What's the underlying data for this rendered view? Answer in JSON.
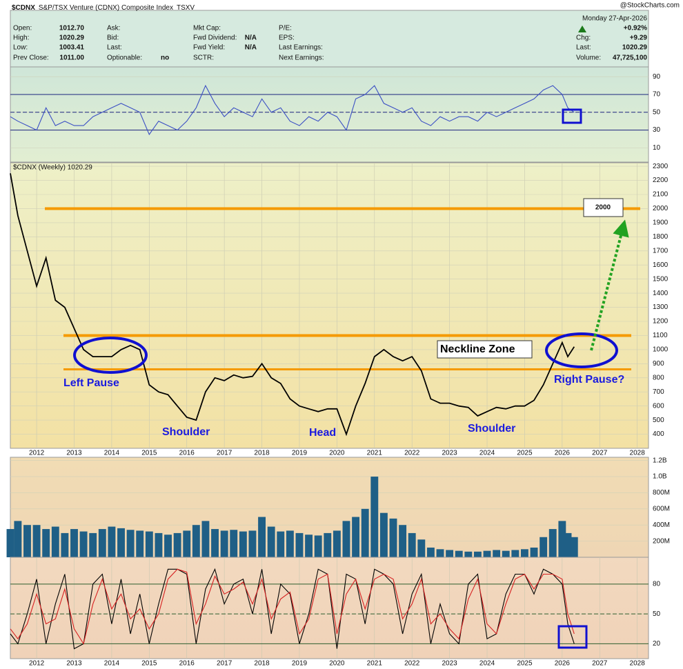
{
  "quote": {
    "symbol": "$CDNX",
    "name": "S&P/TSX Venture (CDNX) Composite Index",
    "exchange": "TSXV",
    "source": "@StockCharts.com",
    "date": "Monday  27-Apr-2026",
    "change_pct": "+0.92%",
    "columns": [
      [
        {
          "label": "Open:",
          "value": "1012.70"
        },
        {
          "label": "High:",
          "value": "1020.29"
        },
        {
          "label": "Low:",
          "value": "1003.41"
        },
        {
          "label": "Prev Close:",
          "value": "1011.00"
        }
      ],
      [
        {
          "label": "Ask:"
        },
        {
          "label": "Bid:"
        },
        {
          "label": "Last:"
        },
        {
          "label": "Optionable:",
          "value": "no"
        }
      ],
      [
        {
          "label": "Mkt Cap:"
        },
        {
          "label": "Fwd Dividend:",
          "value": "N/A"
        },
        {
          "label": "Fwd Yield:",
          "value": "N/A"
        },
        {
          "label": "SCTR:"
        }
      ],
      [
        {
          "label": "P/E:"
        },
        {
          "label": "EPS:"
        },
        {
          "label": "Last Earnings:"
        },
        {
          "label": "Next Earnings:"
        }
      ],
      [
        {
          "label": "Chg:",
          "value": "+9.29"
        },
        {
          "label": "Last:",
          "value": "1020.29"
        },
        {
          "label": "Volume:",
          "value": "47,725,100"
        }
      ]
    ]
  },
  "chart_data": [
    {
      "type": "line",
      "xlim": [
        2011.3,
        2028.3
      ],
      "ylim": [
        -6,
        101
      ],
      "yticks": [
        10,
        30,
        50,
        70,
        90
      ],
      "reference_lines": [
        70,
        50,
        30
      ],
      "reference_color": "#1a237e",
      "x": [
        2011.3,
        2011.5,
        2011.75,
        2012,
        2012.25,
        2012.5,
        2012.75,
        2013,
        2013.25,
        2013.5,
        2013.75,
        2014,
        2014.25,
        2014.5,
        2014.75,
        2015,
        2015.25,
        2015.5,
        2015.75,
        2016,
        2016.25,
        2016.5,
        2016.75,
        2017,
        2017.25,
        2017.5,
        2017.75,
        2018,
        2018.25,
        2018.5,
        2018.75,
        2019,
        2019.25,
        2019.5,
        2019.75,
        2020,
        2020.25,
        2020.5,
        2020.75,
        2021,
        2021.25,
        2021.5,
        2021.75,
        2022,
        2022.25,
        2022.5,
        2022.75,
        2023,
        2023.25,
        2023.5,
        2023.75,
        2024,
        2024.25,
        2024.5,
        2024.75,
        2025,
        2025.25,
        2025.5,
        2025.75,
        2026,
        2026.15,
        2026.32
      ],
      "series": [
        {
          "color": "#3b4fc4",
          "values": [
            45,
            40,
            35,
            30,
            55,
            35,
            40,
            35,
            35,
            45,
            50,
            55,
            60,
            55,
            50,
            25,
            40,
            35,
            30,
            40,
            55,
            80,
            60,
            45,
            55,
            50,
            45,
            65,
            50,
            55,
            40,
            35,
            45,
            40,
            50,
            45,
            30,
            65,
            70,
            80,
            60,
            55,
            50,
            55,
            40,
            35,
            45,
            40,
            45,
            45,
            40,
            50,
            45,
            50,
            55,
            60,
            65,
            75,
            80,
            70,
            55,
            50
          ]
        }
      ]
    },
    {
      "type": "line",
      "legend": "$CDNX (Weekly) 1020.29",
      "xlim": [
        2011.3,
        2028.3
      ],
      "ylim": [
        300,
        2325
      ],
      "yticks": [
        400,
        500,
        600,
        700,
        800,
        900,
        1000,
        1100,
        1200,
        1300,
        1400,
        1500,
        1600,
        1700,
        1800,
        1900,
        2000,
        2100,
        2200,
        2300
      ],
      "xticks": [
        2012,
        2013,
        2014,
        2015,
        2016,
        2017,
        2018,
        2019,
        2020,
        2021,
        2022,
        2023,
        2024,
        2025,
        2026,
        2027,
        2028
      ],
      "levels": [
        2000,
        1100,
        860
      ],
      "level_color": "#f59a00",
      "annotations": [
        "Left Pause",
        "Shoulder",
        "Head",
        "Shoulder",
        "Right Pause?",
        "Neckline Zone"
      ],
      "x": [
        2011.3,
        2011.5,
        2011.75,
        2012,
        2012.25,
        2012.5,
        2012.75,
        2013,
        2013.25,
        2013.5,
        2013.75,
        2014,
        2014.25,
        2014.5,
        2014.75,
        2015,
        2015.25,
        2015.5,
        2015.75,
        2016,
        2016.25,
        2016.5,
        2016.75,
        2017,
        2017.25,
        2017.5,
        2017.75,
        2018,
        2018.25,
        2018.5,
        2018.75,
        2019,
        2019.25,
        2019.5,
        2019.75,
        2020,
        2020.25,
        2020.5,
        2020.75,
        2021,
        2021.25,
        2021.5,
        2021.75,
        2022,
        2022.25,
        2022.5,
        2022.75,
        2023,
        2023.25,
        2023.5,
        2023.75,
        2024,
        2024.25,
        2024.5,
        2024.75,
        2025,
        2025.25,
        2025.5,
        2025.75,
        2026,
        2026.15,
        2026.32
      ],
      "series": [
        {
          "color": "#000000",
          "values": [
            2250,
            1950,
            1700,
            1450,
            1650,
            1350,
            1300,
            1150,
            1000,
            950,
            950,
            950,
            1000,
            1030,
            1000,
            750,
            700,
            680,
            600,
            520,
            500,
            700,
            800,
            780,
            820,
            800,
            810,
            900,
            800,
            760,
            650,
            600,
            580,
            560,
            580,
            580,
            400,
            600,
            760,
            950,
            1000,
            950,
            920,
            950,
            850,
            650,
            620,
            620,
            600,
            590,
            530,
            560,
            590,
            580,
            600,
            600,
            640,
            750,
            900,
            1050,
            950,
            1020
          ]
        }
      ]
    },
    {
      "type": "bar",
      "xlim": [
        2011.3,
        2028.3
      ],
      "ylim": [
        0,
        1240000000
      ],
      "color": "#1f5f86",
      "yticks": [
        {
          "value": 200000000,
          "label": "200M"
        },
        {
          "value": 400000000,
          "label": "400M"
        },
        {
          "value": 600000000,
          "label": "600M"
        },
        {
          "value": 800000000,
          "label": "800M"
        },
        {
          "value": 1000000000,
          "label": "1.0B"
        },
        {
          "value": 1200000000,
          "label": "1.2B"
        }
      ],
      "x": [
        2011.3,
        2011.5,
        2011.75,
        2012,
        2012.25,
        2012.5,
        2012.75,
        2013,
        2013.25,
        2013.5,
        2013.75,
        2014,
        2014.25,
        2014.5,
        2014.75,
        2015,
        2015.25,
        2015.5,
        2015.75,
        2016,
        2016.25,
        2016.5,
        2016.75,
        2017,
        2017.25,
        2017.5,
        2017.75,
        2018,
        2018.25,
        2018.5,
        2018.75,
        2019,
        2019.25,
        2019.5,
        2019.75,
        2020,
        2020.25,
        2020.5,
        2020.75,
        2021,
        2021.25,
        2021.5,
        2021.75,
        2022,
        2022.25,
        2022.5,
        2022.75,
        2023,
        2023.25,
        2023.5,
        2023.75,
        2024,
        2024.25,
        2024.5,
        2024.75,
        2025,
        2025.25,
        2025.5,
        2025.75,
        2026,
        2026.15,
        2026.32
      ],
      "values": [
        350000000,
        450000000,
        400000000,
        400000000,
        350000000,
        380000000,
        300000000,
        350000000,
        320000000,
        300000000,
        350000000,
        380000000,
        360000000,
        340000000,
        330000000,
        320000000,
        300000000,
        280000000,
        300000000,
        330000000,
        400000000,
        450000000,
        350000000,
        330000000,
        340000000,
        320000000,
        330000000,
        500000000,
        380000000,
        320000000,
        330000000,
        300000000,
        280000000,
        270000000,
        300000000,
        330000000,
        450000000,
        500000000,
        600000000,
        1000000000,
        550000000,
        480000000,
        400000000,
        300000000,
        220000000,
        120000000,
        100000000,
        90000000,
        80000000,
        70000000,
        70000000,
        80000000,
        90000000,
        80000000,
        90000000,
        100000000,
        120000000,
        250000000,
        350000000,
        450000000,
        300000000,
        250000000
      ]
    },
    {
      "type": "line",
      "xlim": [
        2011.3,
        2028.3
      ],
      "ylim": [
        5,
        107
      ],
      "yticks": [
        20,
        50,
        80
      ],
      "reference_lines": [
        80,
        50,
        20
      ],
      "reference_color": "#2e5e2e",
      "xticks": [
        2012,
        2013,
        2014,
        2015,
        2016,
        2017,
        2018,
        2019,
        2020,
        2021,
        2022,
        2023,
        2024,
        2025,
        2026,
        2027,
        2028
      ],
      "x": [
        2011.3,
        2011.5,
        2011.75,
        2012,
        2012.25,
        2012.5,
        2012.75,
        2013,
        2013.25,
        2013.5,
        2013.75,
        2014,
        2014.25,
        2014.5,
        2014.75,
        2015,
        2015.25,
        2015.5,
        2015.75,
        2016,
        2016.25,
        2016.5,
        2016.75,
        2017,
        2017.25,
        2017.5,
        2017.75,
        2018,
        2018.25,
        2018.5,
        2018.75,
        2019,
        2019.25,
        2019.5,
        2019.75,
        2020,
        2020.25,
        2020.5,
        2020.75,
        2021,
        2021.25,
        2021.5,
        2021.75,
        2022,
        2022.25,
        2022.5,
        2022.75,
        2023,
        2023.25,
        2023.5,
        2023.75,
        2024,
        2024.25,
        2024.5,
        2024.75,
        2025,
        2025.25,
        2025.5,
        2025.75,
        2026,
        2026.15,
        2026.32
      ],
      "series": [
        {
          "color": "#000000",
          "values": [
            30,
            20,
            50,
            85,
            20,
            60,
            90,
            15,
            20,
            80,
            90,
            40,
            85,
            30,
            70,
            20,
            60,
            95,
            95,
            90,
            20,
            75,
            95,
            60,
            80,
            85,
            50,
            95,
            30,
            80,
            70,
            20,
            50,
            95,
            90,
            15,
            90,
            85,
            40,
            95,
            90,
            80,
            30,
            70,
            90,
            20,
            60,
            30,
            20,
            80,
            90,
            25,
            30,
            70,
            90,
            90,
            70,
            95,
            90,
            80,
            40,
            20
          ]
        },
        {
          "color": "#d62020",
          "values": [
            35,
            25,
            40,
            70,
            40,
            45,
            75,
            35,
            20,
            60,
            85,
            55,
            70,
            45,
            55,
            35,
            50,
            85,
            95,
            92,
            40,
            60,
            88,
            70,
            75,
            82,
            60,
            85,
            45,
            65,
            72,
            30,
            45,
            85,
            90,
            30,
            70,
            85,
            55,
            85,
            90,
            85,
            45,
            60,
            85,
            40,
            50,
            35,
            25,
            65,
            85,
            40,
            30,
            60,
            85,
            90,
            75,
            90,
            90,
            85,
            50,
            30
          ]
        }
      ]
    }
  ]
}
